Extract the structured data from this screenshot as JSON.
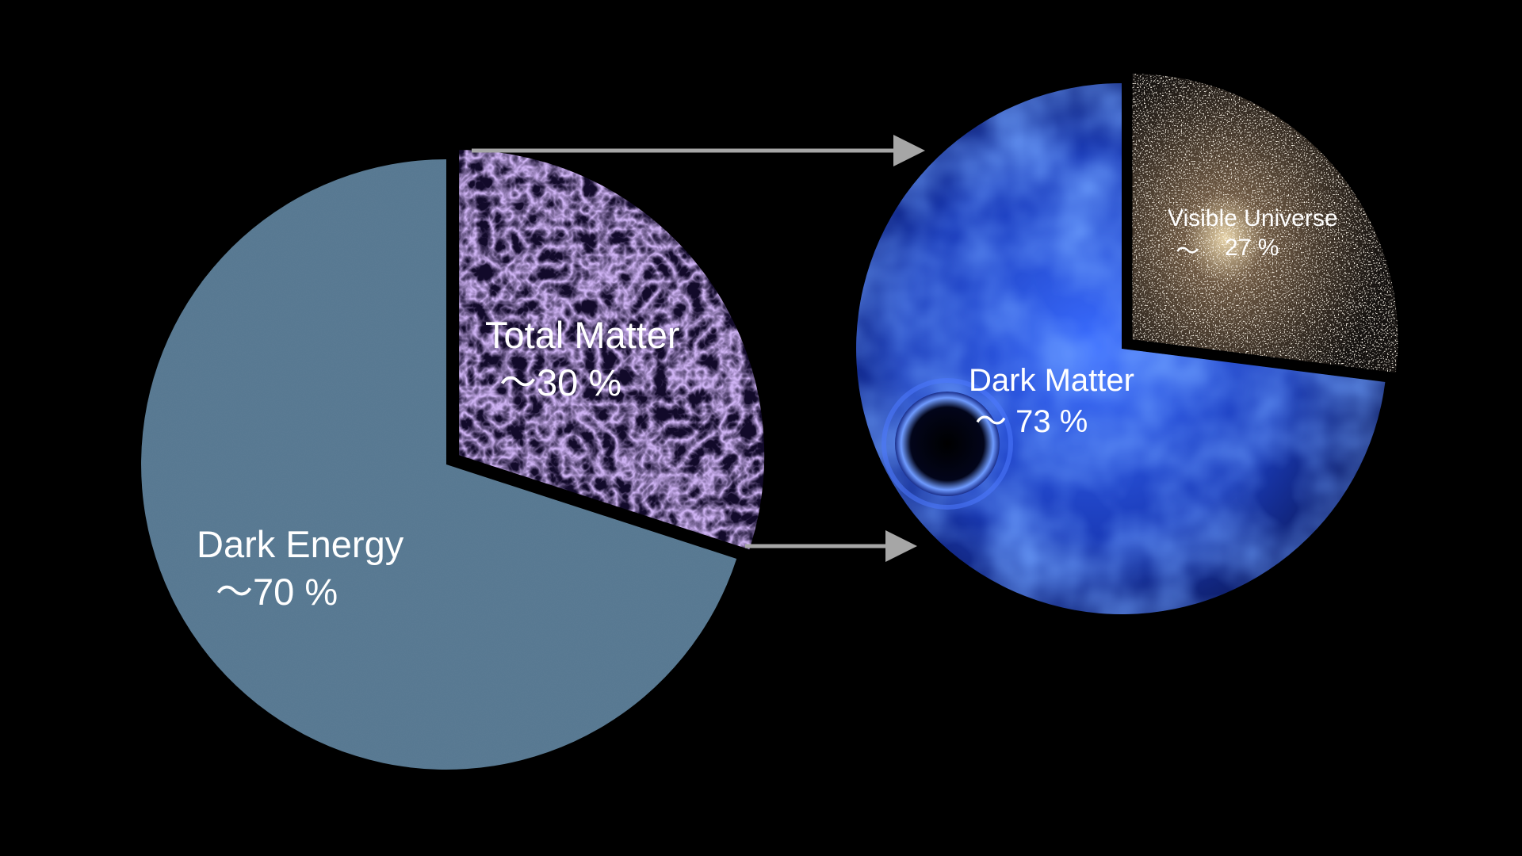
{
  "colors": {
    "background": "#000000",
    "dark_energy": "#5b7d95",
    "total_matter_base": "#120a2a",
    "total_matter_web": "#9a6fd8",
    "dark_matter_base": "#10227a",
    "dark_matter_glow": "#3a6cff",
    "visible_base": "#1e1a17",
    "arrow": "#a6a6a6",
    "text": "#ffffff"
  },
  "chart_data": [
    {
      "type": "pie",
      "slices": [
        {
          "name": "Total Matter",
          "label": "Total Matter",
          "value_label": "～30 %",
          "value": 30,
          "fill": "cosmic-web-texture"
        },
        {
          "name": "Dark Energy",
          "label": "Dark Energy",
          "value_label": "～70 %",
          "value": 70,
          "fill": "flat-blue-gray"
        }
      ],
      "exploded_slice": "Total Matter"
    },
    {
      "type": "pie",
      "slices": [
        {
          "name": "Visible Universe",
          "label": "Visible Universe",
          "value_label_symbol": "～",
          "value_label": "27 %",
          "value": 27,
          "fill": "galaxy-field-texture"
        },
        {
          "name": "Dark Matter",
          "label": "Dark Matter",
          "value_label": "～ 73 %",
          "value": 73,
          "fill": "dark-matter-texture"
        }
      ],
      "exploded_slice": "Visible Universe"
    }
  ],
  "arrows": [
    {
      "from": "Total Matter",
      "to": "second-pie",
      "position": "top"
    },
    {
      "from": "Total Matter",
      "to": "second-pie",
      "position": "bottom"
    }
  ]
}
